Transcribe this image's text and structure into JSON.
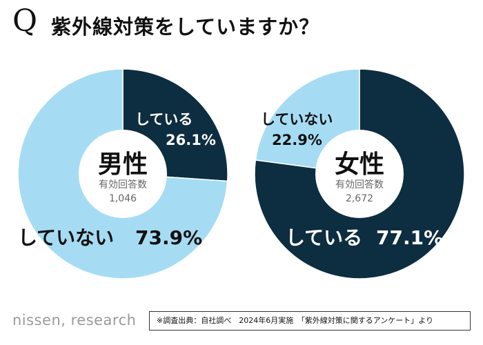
{
  "title": {
    "q_mark": "Q",
    "text": "紫外線対策をしていますか？"
  },
  "chart_data": [
    {
      "type": "pie",
      "title": "男性",
      "n_label": "有効回答数",
      "n_value": "1,046",
      "slices": [
        {
          "label": "している",
          "value": 26.1,
          "value_text": "26.1%",
          "color": "#0d2d40"
        },
        {
          "label": "していない",
          "value": 73.9,
          "value_text": "73.9%",
          "color": "#a5dcf4"
        }
      ]
    },
    {
      "type": "pie",
      "title": "女性",
      "n_label": "有効回答数",
      "n_value": "2,672",
      "slices": [
        {
          "label": "している",
          "value": 77.1,
          "value_text": "77.1%",
          "color": "#0d2d40"
        },
        {
          "label": "していない",
          "value": 22.9,
          "value_text": "22.9%",
          "color": "#a5dcf4"
        }
      ]
    }
  ],
  "footer": {
    "logo": "nissen, research",
    "source": "※調査出典：自社調べ　2024年6月実施　「紫外線対策に関するアンケート」より"
  }
}
